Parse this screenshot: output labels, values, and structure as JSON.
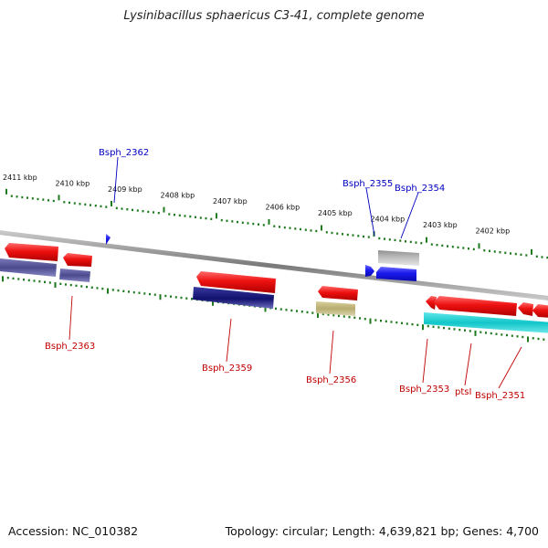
{
  "title": "Lysinibacillus sphaericus C3-41, complete genome",
  "footer": {
    "accession": "Accession: NC_010382",
    "summary": "Topology: circular; Length: 4,639,821 bp; Genes: 4,700"
  },
  "scale": {
    "unit": "kbp",
    "ticks": [
      "2411 kbp",
      "2410 kbp",
      "2409 kbp",
      "2408 kbp",
      "2407 kbp",
      "2406 kbp",
      "2405 kbp",
      "2404 kbp",
      "2403 kbp",
      "2402 kbp"
    ]
  },
  "colors": {
    "backbone": "#8a8a8a",
    "tick_green": "#1e7a1e",
    "forward_label": "#0000c0",
    "reverse_label": "#c00000",
    "gene_red": "#ee1111",
    "gene_blue": "#1a1aee",
    "gene_navy": "#10106e",
    "gene_purple": "#4b4a8e",
    "gene_khaki": "#b7ac70",
    "gene_gray": "#b3b3b3",
    "gene_cyan": "#11c6c9"
  },
  "genes": {
    "forward_labels": [
      "Bsph_2362",
      "Bsph_2355",
      "Bsph_2354"
    ],
    "reverse_labels": [
      "Bsph_2363",
      "Bsph_2359",
      "Bsph_2356",
      "Bsph_2353",
      "ptsI",
      "Bsph_2351"
    ]
  }
}
